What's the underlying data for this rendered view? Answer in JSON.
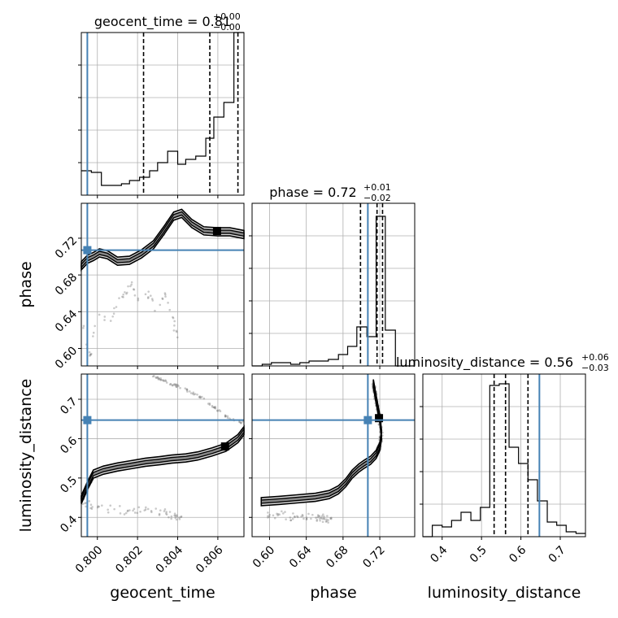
{
  "chart_data": [
    {
      "type": "corner",
      "parameters": [
        "geocent_time",
        "phase",
        "luminosity_distance"
      ],
      "truth": {
        "geocent_time": 0.7995,
        "phase": 0.707,
        "luminosity_distance": 0.647
      },
      "colors": {
        "truth": "#4682b4",
        "hist": "#000000",
        "grid": "#b0b0b0",
        "scatter": "#555555"
      },
      "grid": true
    },
    {
      "type": "bar",
      "panel": "geocent_time-hist",
      "title": {
        "main": "geocent_time = 0.81",
        "sup": "+0.00",
        "sub": "−0.00"
      },
      "xlim": [
        0.7992,
        0.8073
      ],
      "ylim": [
        0,
        1
      ],
      "x_ticks": [
        0.8,
        0.802,
        0.804,
        0.806
      ],
      "quantiles": [
        0.8023,
        0.8056,
        0.807
      ],
      "bin_edges": [
        0.7992,
        0.7997,
        0.8002,
        0.8007,
        0.8012,
        0.8016,
        0.8021,
        0.8026,
        0.803,
        0.8035,
        0.804,
        0.8044,
        0.8049,
        0.8054,
        0.8058,
        0.8063,
        0.8068,
        0.8073
      ],
      "values": [
        0.15,
        0.14,
        0.06,
        0.06,
        0.07,
        0.09,
        0.11,
        0.15,
        0.2,
        0.27,
        0.19,
        0.22,
        0.24,
        0.35,
        0.48,
        0.57,
        1.0
      ]
    },
    {
      "type": "scatter",
      "panel": "geocent_time-vs-phase",
      "xlim": [
        0.7992,
        0.8073
      ],
      "ylim": [
        0.581,
        0.758
      ],
      "x_ticks": [
        0.8,
        0.802,
        0.804,
        0.806
      ],
      "y_ticks": [
        0.6,
        0.64,
        0.68,
        0.72
      ],
      "ylabel": "phase",
      "ridge": [
        [
          0.7992,
          0.69
        ],
        [
          0.7995,
          0.697
        ],
        [
          0.7998,
          0.7
        ],
        [
          0.8001,
          0.704
        ],
        [
          0.8005,
          0.702
        ],
        [
          0.801,
          0.695
        ],
        [
          0.8016,
          0.696
        ],
        [
          0.8022,
          0.703
        ],
        [
          0.8028,
          0.713
        ],
        [
          0.8033,
          0.728
        ],
        [
          0.8038,
          0.744
        ],
        [
          0.8042,
          0.747
        ],
        [
          0.8047,
          0.736
        ],
        [
          0.8053,
          0.728
        ],
        [
          0.806,
          0.727
        ],
        [
          0.8066,
          0.727
        ],
        [
          0.8073,
          0.724
        ]
      ],
      "tail": [
        [
          0.7992,
          0.65
        ],
        [
          0.7994,
          0.61
        ],
        [
          0.7996,
          0.59
        ],
        [
          0.7999,
          0.62
        ],
        [
          0.8002,
          0.64
        ],
        [
          0.8006,
          0.63
        ],
        [
          0.801,
          0.65
        ],
        [
          0.8014,
          0.66
        ],
        [
          0.8017,
          0.67
        ],
        [
          0.8021,
          0.65
        ],
        [
          0.8026,
          0.66
        ],
        [
          0.803,
          0.64
        ],
        [
          0.8034,
          0.66
        ],
        [
          0.8038,
          0.63
        ],
        [
          0.804,
          0.61
        ]
      ]
    },
    {
      "type": "bar",
      "panel": "phase-hist",
      "title": {
        "main": "phase = 0.72",
        "sup": "+0.01",
        "sub": "−0.02"
      },
      "xlim": [
        0.581,
        0.758
      ],
      "ylim": [
        0,
        1
      ],
      "x_ticks": [
        0.6,
        0.64,
        0.68,
        0.72
      ],
      "quantiles": [
        0.699,
        0.717,
        0.723
      ],
      "bin_edges": [
        0.581,
        0.592,
        0.602,
        0.612,
        0.623,
        0.633,
        0.643,
        0.654,
        0.664,
        0.675,
        0.685,
        0.695,
        0.706,
        0.716,
        0.726,
        0.737,
        0.747,
        0.758
      ],
      "values": [
        0.0,
        0.01,
        0.02,
        0.02,
        0.01,
        0.02,
        0.03,
        0.03,
        0.04,
        0.07,
        0.12,
        0.24,
        0.18,
        0.92,
        0.22,
        0.0,
        0.0
      ]
    },
    {
      "type": "scatter",
      "panel": "geocent_time-vs-luminosity_distance",
      "xlim": [
        0.7992,
        0.8073
      ],
      "ylim": [
        0.351,
        0.764
      ],
      "x_ticks": [
        0.8,
        0.802,
        0.804,
        0.806
      ],
      "y_ticks": [
        0.4,
        0.5,
        0.6,
        0.7
      ],
      "xlabel": "geocent_time",
      "ylabel": "luminosity_distance",
      "ridge": [
        [
          0.7992,
          0.445
        ],
        [
          0.7995,
          0.48
        ],
        [
          0.7998,
          0.51
        ],
        [
          0.8003,
          0.52
        ],
        [
          0.801,
          0.528
        ],
        [
          0.8017,
          0.534
        ],
        [
          0.8024,
          0.54
        ],
        [
          0.8031,
          0.544
        ],
        [
          0.8037,
          0.548
        ],
        [
          0.8044,
          0.551
        ],
        [
          0.805,
          0.556
        ],
        [
          0.8057,
          0.566
        ],
        [
          0.8064,
          0.578
        ],
        [
          0.807,
          0.6
        ],
        [
          0.8073,
          0.62
        ]
      ],
      "upper": [
        [
          0.8028,
          0.76
        ],
        [
          0.8034,
          0.745
        ],
        [
          0.8042,
          0.73
        ],
        [
          0.805,
          0.71
        ],
        [
          0.8058,
          0.68
        ],
        [
          0.8066,
          0.65
        ],
        [
          0.8073,
          0.64
        ]
      ],
      "tail": [
        [
          0.7992,
          0.445
        ],
        [
          0.7996,
          0.43
        ],
        [
          0.8002,
          0.425
        ],
        [
          0.801,
          0.42
        ],
        [
          0.8018,
          0.415
        ],
        [
          0.8025,
          0.418
        ],
        [
          0.8032,
          0.412
        ],
        [
          0.8039,
          0.405
        ],
        [
          0.8042,
          0.4
        ]
      ]
    },
    {
      "type": "scatter",
      "panel": "phase-vs-luminosity_distance",
      "xlim": [
        0.581,
        0.758
      ],
      "ylim": [
        0.351,
        0.764
      ],
      "x_ticks": [
        0.6,
        0.64,
        0.68,
        0.72
      ],
      "y_ticks": [
        0.4,
        0.5,
        0.6,
        0.7
      ],
      "xlabel": "phase",
      "ridge": [
        [
          0.591,
          0.44
        ],
        [
          0.61,
          0.443
        ],
        [
          0.63,
          0.447
        ],
        [
          0.65,
          0.451
        ],
        [
          0.665,
          0.458
        ],
        [
          0.675,
          0.47
        ],
        [
          0.683,
          0.488
        ],
        [
          0.69,
          0.51
        ],
        [
          0.697,
          0.525
        ],
        [
          0.703,
          0.535
        ],
        [
          0.71,
          0.545
        ],
        [
          0.716,
          0.56
        ],
        [
          0.72,
          0.58
        ],
        [
          0.722,
          0.61
        ],
        [
          0.72,
          0.65
        ],
        [
          0.716,
          0.7
        ],
        [
          0.713,
          0.74
        ]
      ],
      "tail": [
        [
          0.596,
          0.41
        ],
        [
          0.614,
          0.405
        ],
        [
          0.635,
          0.4
        ],
        [
          0.655,
          0.398
        ],
        [
          0.668,
          0.397
        ]
      ]
    },
    {
      "type": "bar",
      "panel": "luminosity_distance-hist",
      "title": {
        "main": "luminosity_distance = 0.56",
        "sup": "+0.06",
        "sub": "−0.03"
      },
      "xlim": [
        0.351,
        0.764
      ],
      "ylim": [
        0,
        1
      ],
      "x_ticks": [
        0.4,
        0.5,
        0.6,
        0.7
      ],
      "xlabel": "luminosity_distance",
      "quantiles": [
        0.532,
        0.561,
        0.618
      ],
      "bin_edges": [
        0.351,
        0.375,
        0.4,
        0.424,
        0.448,
        0.473,
        0.497,
        0.521,
        0.545,
        0.57,
        0.594,
        0.618,
        0.642,
        0.667,
        0.691,
        0.715,
        0.74,
        0.764
      ],
      "values": [
        0.0,
        0.07,
        0.06,
        0.1,
        0.15,
        0.1,
        0.18,
        0.93,
        0.94,
        0.55,
        0.45,
        0.35,
        0.22,
        0.09,
        0.07,
        0.03,
        0.02
      ]
    }
  ]
}
